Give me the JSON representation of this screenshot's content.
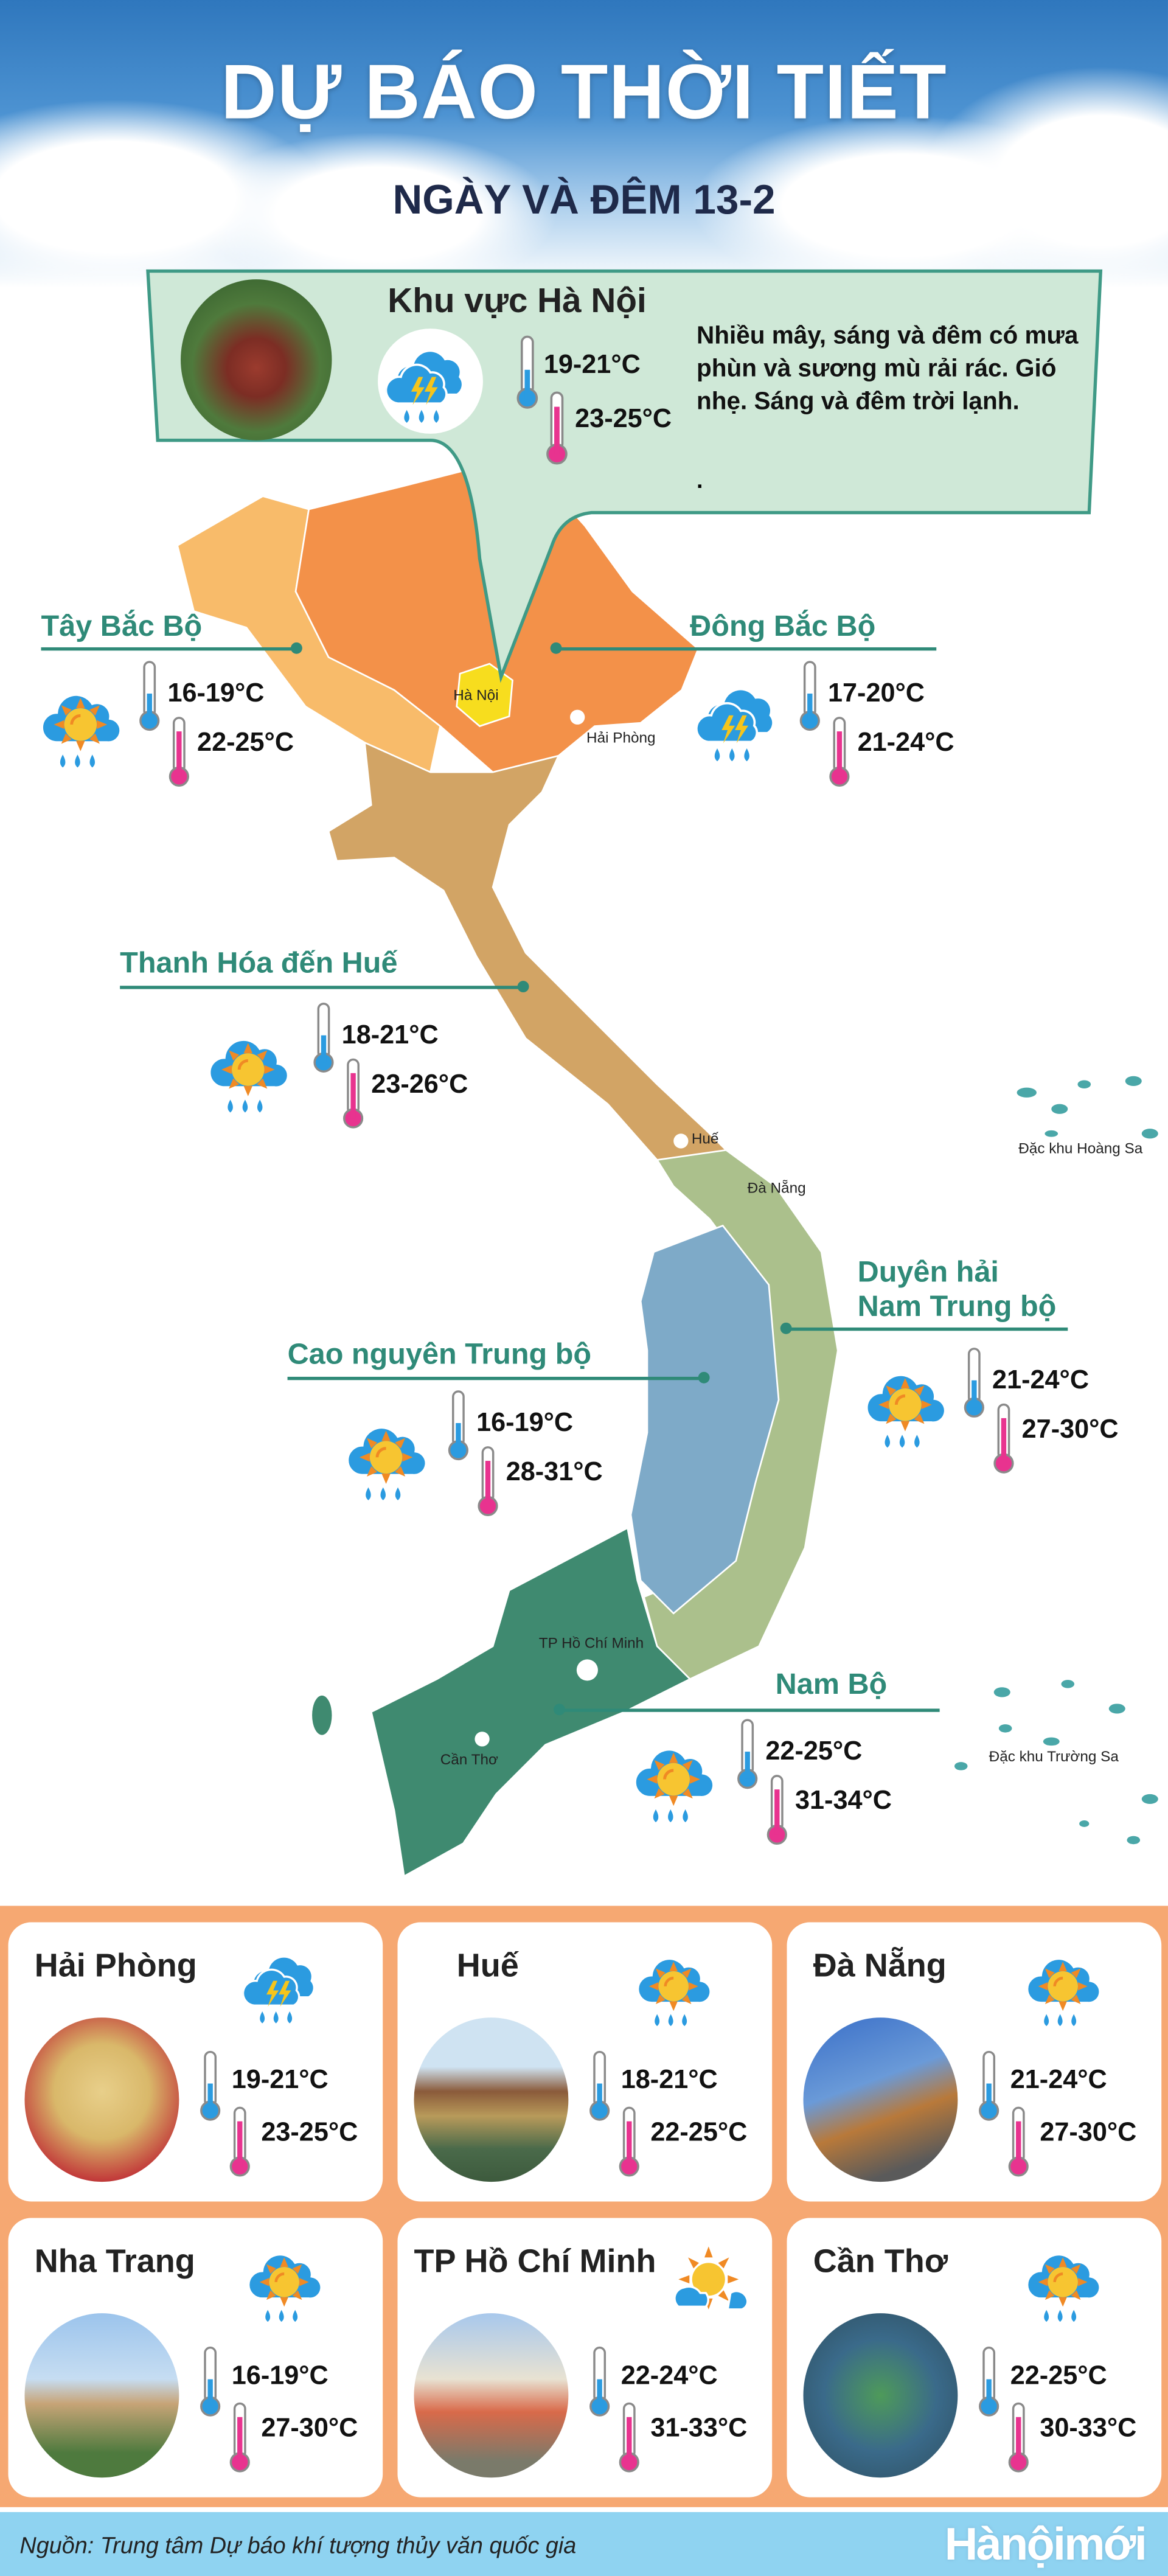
{
  "header": {
    "title": "DỰ BÁO THỜI TIẾT",
    "subtitle": "NGÀY VÀ ĐÊM 13-2"
  },
  "hanoi": {
    "title": "Khu vực Hà Nội",
    "icon": "rain-thunder-icon",
    "low": "19-21°C",
    "high": "23-25°C",
    "description": "Nhiều mây, sáng và đêm có mưa phùn và sương mù rải rác. Gió nhẹ. Sáng và đêm trời lạnh.",
    "dot": "."
  },
  "regions": [
    {
      "name": "Tây Bắc Bộ",
      "icon": "sun-cloud-rain-icon",
      "low": "16-19°C",
      "high": "22-25°C"
    },
    {
      "name": "Đông Bắc Bộ",
      "icon": "rain-thunder-icon",
      "low": "17-20°C",
      "high": "21-24°C"
    },
    {
      "name": "Thanh Hóa đến Huế",
      "icon": "sun-cloud-rain-icon",
      "low": "18-21°C",
      "high": "23-26°C"
    },
    {
      "name": "Duyên hải",
      "name2": "Nam Trung bộ",
      "icon": "sun-cloud-rain-icon",
      "low": "21-24°C",
      "high": "27-30°C"
    },
    {
      "name": "Cao nguyên Trung bộ",
      "icon": "sun-cloud-rain-icon",
      "low": "16-19°C",
      "high": "28-31°C"
    },
    {
      "name": "Nam Bộ",
      "icon": "sun-cloud-rain-icon",
      "low": "22-25°C",
      "high": "31-34°C"
    }
  ],
  "map_labels": {
    "hanoi": "Hà Nội",
    "haiphong": "Hải Phòng",
    "hue": "Huế",
    "danang": "Đà Nẵng",
    "hcm": "TP Hồ Chí Minh",
    "cantho": "Cần Thơ",
    "hoangsa": "Đặc khu Hoàng Sa",
    "truongsa": "Đặc khu Trường Sa"
  },
  "cities": [
    {
      "name": "Hải Phòng",
      "icon": "rain-thunder-icon",
      "low": "19-21°C",
      "high": "23-25°C"
    },
    {
      "name": "Huế",
      "icon": "sun-cloud-rain-icon",
      "low": "18-21°C",
      "high": "22-25°C"
    },
    {
      "name": "Đà Nẵng",
      "icon": "sun-cloud-rain-icon",
      "low": "21-24°C",
      "high": "27-30°C"
    },
    {
      "name": "Nha Trang",
      "icon": "sun-cloud-rain-icon",
      "low": "16-19°C",
      "high": "27-30°C"
    },
    {
      "name": "TP Hồ Chí Minh",
      "icon": "sun-cloud-icon",
      "low": "22-24°C",
      "high": "31-33°C"
    },
    {
      "name": "Cần Thơ",
      "icon": "sun-cloud-rain-icon",
      "low": "22-25°C",
      "high": "30-33°C"
    }
  ],
  "footer": {
    "source": "Nguồn: Trung tâm Dự báo khí tượng thủy văn quốc gia",
    "logo": "Hànộimới"
  },
  "colors": {
    "sky": "#2f77bd",
    "panel": "#cfe8d7",
    "teal": "#2f8a78",
    "tay_bac": "#f8bb6a",
    "dong_bac": "#f39149",
    "hanoi": "#f7dd1e",
    "thanh_hoa_hue": "#d2a465",
    "duyen_hai": "#abc08c",
    "tay_nguyen": "#7eaac8",
    "nam_bo": "#3f8a70",
    "orange": "#f6a872",
    "footer": "#8fd3f1"
  }
}
